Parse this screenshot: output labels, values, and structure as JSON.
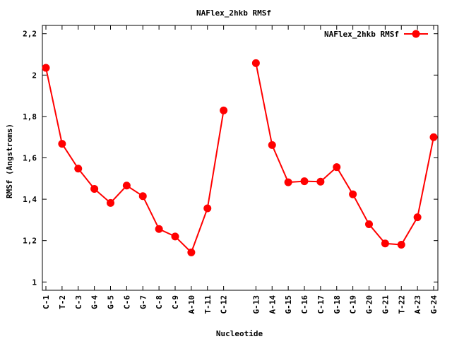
{
  "chart_data": {
    "type": "line",
    "title": "NAFlex_2hkb RMSf",
    "xlabel": "Nucleotide",
    "ylabel": "RMSf (Angstroms)",
    "ylim": [
      0.96,
      2.24
    ],
    "yticks": [
      1,
      1.2,
      1.4,
      1.6,
      1.8,
      2,
      2.2
    ],
    "ytick_labels": [
      "1",
      "1,2",
      "1,4",
      "1,6",
      "1,8",
      "2",
      "2,2"
    ],
    "grid": false,
    "legend_position": "top-right",
    "series_color": "#ff0000",
    "categories": [
      "C-1",
      "T-2",
      "C-3",
      "G-4",
      "G-5",
      "C-6",
      "G-7",
      "C-8",
      "C-9",
      "A-10",
      "T-11",
      "C-12",
      "G-13",
      "A-14",
      "G-15",
      "C-16",
      "C-17",
      "G-18",
      "C-19",
      "G-20",
      "G-21",
      "T-22",
      "A-23",
      "G-24"
    ],
    "x": [
      1,
      2,
      3,
      4,
      5,
      6,
      7,
      8,
      9,
      10,
      11,
      12,
      14,
      15,
      16,
      17,
      18,
      19,
      20,
      21,
      22,
      23,
      24,
      25
    ],
    "series": [
      {
        "name": "NAFlex_2hkb RMSf",
        "segments": [
          [
            2.035,
            1.668,
            1.548,
            1.45,
            1.382,
            1.466,
            1.415,
            1.256,
            1.22,
            1.143,
            1.356,
            1.829
          ],
          [
            2.058,
            1.662,
            1.482,
            1.487,
            1.485,
            1.555,
            1.424,
            1.279,
            1.186,
            1.18,
            1.313,
            1.7
          ]
        ]
      }
    ]
  }
}
